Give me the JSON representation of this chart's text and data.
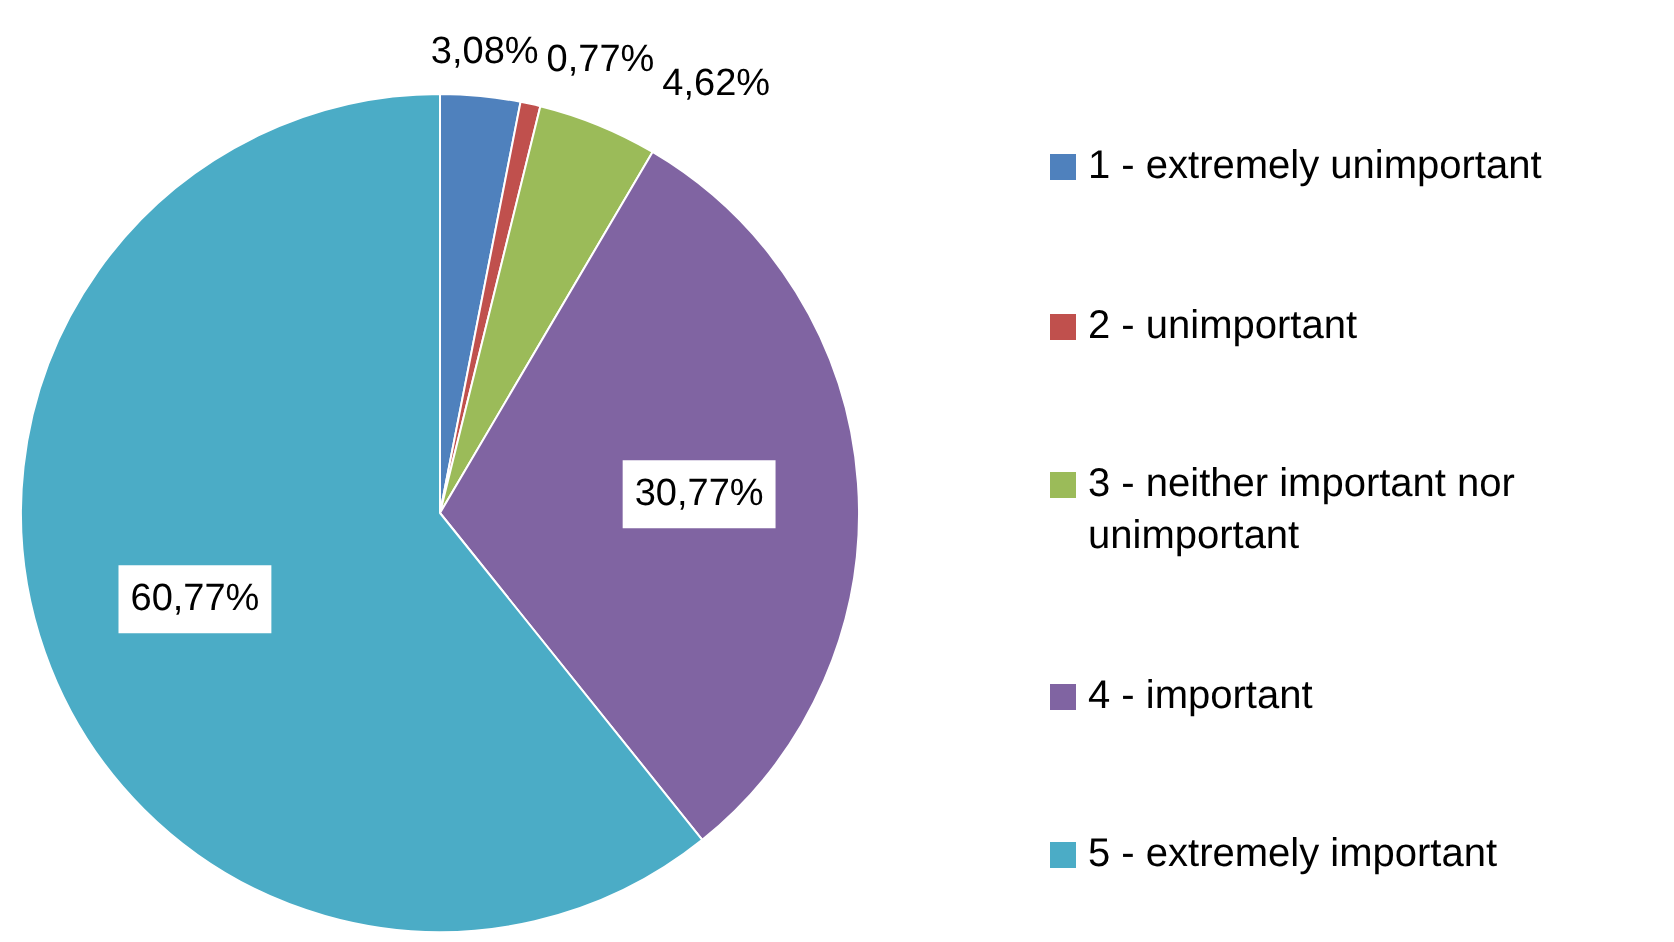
{
  "chart_data": {
    "type": "pie",
    "categories": [
      "1 - extremely unimportant",
      "2 - unimportant",
      "3 - neither important nor unimportant",
      "4 - important",
      "5 - extremely important"
    ],
    "values": [
      3.08,
      0.77,
      4.62,
      30.77,
      60.77
    ],
    "colors": [
      "#4f81bd",
      "#c0504d",
      "#9bbb59",
      "#8064a2",
      "#4bacc6"
    ],
    "value_labels": [
      "3,08%",
      "0,77%",
      "4,62%",
      "30,77%",
      "60,77%"
    ],
    "legend": "right"
  }
}
